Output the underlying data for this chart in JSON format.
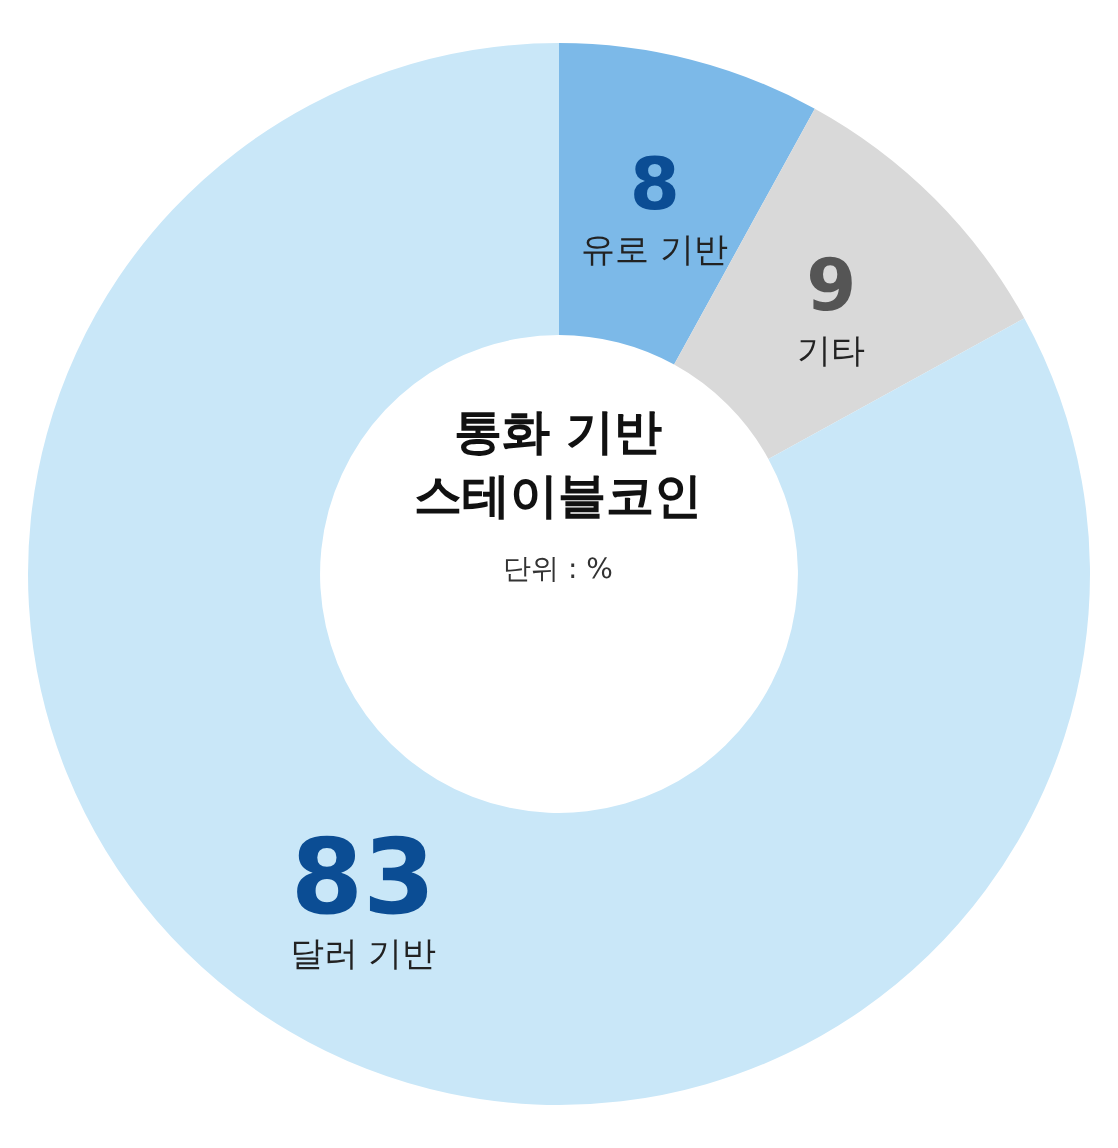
{
  "chart_data": {
    "type": "donut",
    "title": "통화 기반 스테이블코인",
    "categories": [
      "유로 기반",
      "기타",
      "달러 기반"
    ],
    "values": [
      8,
      9,
      83
    ],
    "colors": [
      "#7cb9e8",
      "#d9d9d9",
      "#c9e7f8"
    ],
    "data_labels": true,
    "legend": false,
    "annotations": [
      "단위 : %"
    ]
  }
}
